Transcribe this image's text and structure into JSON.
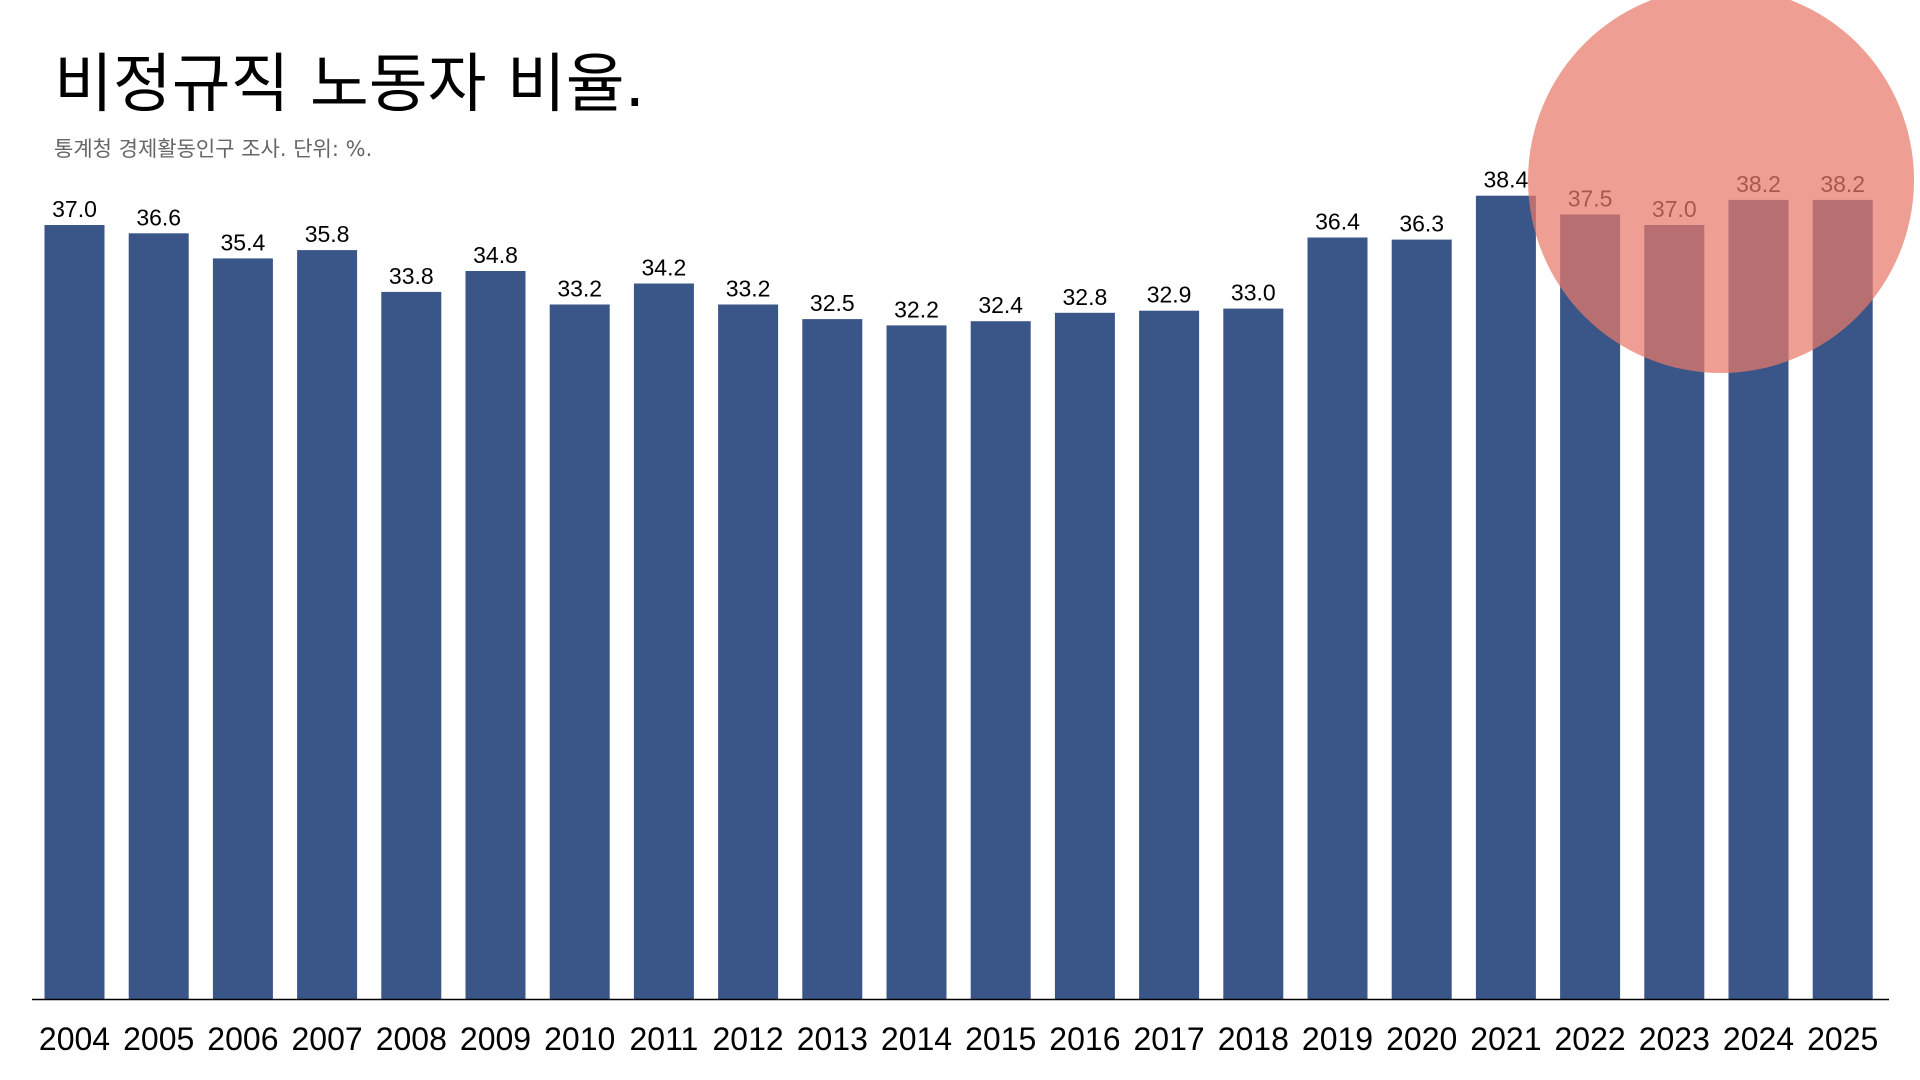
{
  "chart_data": {
    "type": "bar",
    "title": "비정규직 노동자 비율.",
    "subtitle": "통계청 경제활동인구 조사. 단위: %.",
    "categories": [
      "2004",
      "2005",
      "2006",
      "2007",
      "2008",
      "2009",
      "2010",
      "2011",
      "2012",
      "2013",
      "2014",
      "2015",
      "2016",
      "2017",
      "2018",
      "2019",
      "2020",
      "2021",
      "2022",
      "2023",
      "2024",
      "2025"
    ],
    "values": [
      37.0,
      36.6,
      35.4,
      35.8,
      33.8,
      34.8,
      33.2,
      34.2,
      33.2,
      32.5,
      32.2,
      32.4,
      32.8,
      32.9,
      33.0,
      36.4,
      36.3,
      38.4,
      37.5,
      37.0,
      38.2,
      38.2
    ],
    "value_labels": [
      "37.0",
      "36.6",
      "35.4",
      "35.8",
      "33.8",
      "34.8",
      "33.2",
      "34.2",
      "33.2",
      "32.5",
      "32.2",
      "32.4",
      "32.8",
      "32.9",
      "33.0",
      "36.4",
      "36.3",
      "38.4",
      "37.5",
      "37.0",
      "38.2",
      "38.2"
    ],
    "xlabel": "",
    "ylabel": "",
    "ylim": [
      0,
      40
    ],
    "grid": false,
    "legend": "none",
    "highlight": {
      "shape": "circle",
      "categories": [
        "2021",
        "2022",
        "2023",
        "2024",
        "2025"
      ]
    }
  },
  "colors": {
    "bar": "#3a5688",
    "highlight": "#e8786a",
    "axis": "#000000",
    "background": "#ffffff"
  }
}
